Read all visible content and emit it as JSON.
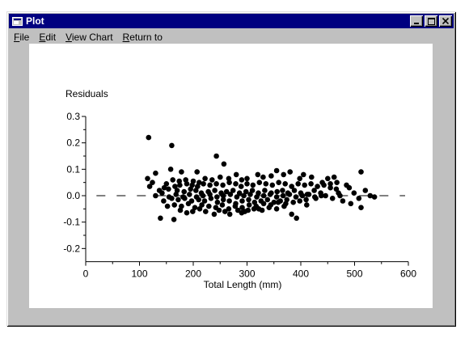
{
  "window": {
    "title": "Plot",
    "controls": [
      "minimize",
      "maximize",
      "close"
    ]
  },
  "menu": [
    {
      "label_ul": "F",
      "label_rest": "ile"
    },
    {
      "label_ul": "E",
      "label_rest": "dit"
    },
    {
      "label_ul": "V",
      "label_rest": "iew Chart"
    },
    {
      "label_ul": "R",
      "label_rest": "eturn to"
    }
  ],
  "chart_data": {
    "type": "scatter",
    "title": "",
    "ylabel": "Residuals",
    "xlabel": "Total Length (mm)",
    "xlim": [
      0,
      600
    ],
    "ylim": [
      -0.25,
      0.3
    ],
    "xticks": [
      0,
      100,
      200,
      300,
      400,
      500,
      600
    ],
    "yticks": [
      -0.2,
      -0.1,
      0.0,
      0.1,
      0.2,
      0.3
    ],
    "ytick_labels": [
      "-0.2",
      "-0.1",
      "0.0",
      "0.1",
      "0.2",
      "0.3"
    ],
    "reference_line": {
      "y": 0.0,
      "style": "dashed",
      "x_range": [
        20,
        600
      ]
    },
    "grid": false,
    "legend": "none",
    "marker_color": "#000000",
    "points": [
      [
        117,
        0.22
      ],
      [
        160,
        0.19
      ],
      [
        243,
        0.15
      ],
      [
        257,
        0.12
      ],
      [
        158,
        0.1
      ],
      [
        130,
        0.085
      ],
      [
        178,
        0.09
      ],
      [
        207,
        0.09
      ],
      [
        355,
        0.095
      ],
      [
        380,
        0.09
      ],
      [
        512,
        0.09
      ],
      [
        115,
        0.065
      ],
      [
        124,
        0.05
      ],
      [
        119,
        0.035
      ],
      [
        137,
        0.02
      ],
      [
        130,
        0.0
      ],
      [
        145,
        -0.02
      ],
      [
        152,
        -0.04
      ],
      [
        139,
        -0.085
      ],
      [
        164,
        -0.09
      ],
      [
        188,
        -0.065
      ],
      [
        223,
        -0.06
      ],
      [
        239,
        -0.07
      ],
      [
        268,
        -0.07
      ],
      [
        290,
        -0.065
      ],
      [
        302,
        -0.055
      ],
      [
        322,
        -0.05
      ],
      [
        355,
        -0.05
      ],
      [
        369,
        -0.04
      ],
      [
        383,
        -0.07
      ],
      [
        392,
        -0.085
      ],
      [
        411,
        -0.035
      ],
      [
        428,
        -0.01
      ],
      [
        446,
        0.0
      ],
      [
        455,
        0.03
      ],
      [
        470,
        0.01
      ],
      [
        490,
        0.03
      ],
      [
        499,
        0.01
      ],
      [
        508,
        -0.01
      ],
      [
        512,
        -0.045
      ],
      [
        520,
        0.02
      ],
      [
        529,
        0.0
      ],
      [
        537,
        -0.005
      ],
      [
        478,
        -0.02
      ],
      [
        493,
        -0.03
      ],
      [
        450,
        0.065
      ],
      [
        462,
        0.07
      ],
      [
        440,
        0.05
      ],
      [
        420,
        0.07
      ],
      [
        405,
        0.08
      ],
      [
        398,
        0.065
      ],
      [
        368,
        0.08
      ],
      [
        345,
        0.075
      ],
      [
        330,
        0.07
      ],
      [
        320,
        0.08
      ],
      [
        300,
        0.065
      ],
      [
        290,
        0.06
      ],
      [
        280,
        0.08
      ],
      [
        266,
        0.065
      ],
      [
        250,
        0.07
      ],
      [
        235,
        0.06
      ],
      [
        222,
        0.065
      ],
      [
        211,
        0.05
      ],
      [
        200,
        0.055
      ],
      [
        188,
        0.045
      ],
      [
        175,
        0.04
      ],
      [
        166,
        0.035
      ],
      [
        154,
        0.025
      ],
      [
        146,
        0.03
      ],
      [
        170,
        0.02
      ],
      [
        183,
        0.015
      ],
      [
        195,
        0.025
      ],
      [
        205,
        0.02
      ],
      [
        215,
        0.01
      ],
      [
        228,
        0.015
      ],
      [
        240,
        0.02
      ],
      [
        252,
        0.01
      ],
      [
        262,
        0.015
      ],
      [
        274,
        0.02
      ],
      [
        286,
        0.01
      ],
      [
        298,
        0.015
      ],
      [
        310,
        0.02
      ],
      [
        321,
        0.01
      ],
      [
        333,
        0.02
      ],
      [
        345,
        0.01
      ],
      [
        356,
        0.015
      ],
      [
        366,
        0.02
      ],
      [
        376,
        0.01
      ],
      [
        388,
        0.02
      ],
      [
        400,
        0.01
      ],
      [
        412,
        0.005
      ],
      [
        425,
        0.02
      ],
      [
        437,
        0.01
      ],
      [
        160,
        -0.01
      ],
      [
        172,
        -0.015
      ],
      [
        184,
        -0.01
      ],
      [
        197,
        -0.02
      ],
      [
        210,
        -0.015
      ],
      [
        221,
        -0.02
      ],
      [
        233,
        -0.01
      ],
      [
        245,
        -0.025
      ],
      [
        256,
        -0.015
      ],
      [
        267,
        -0.02
      ],
      [
        279,
        -0.03
      ],
      [
        291,
        -0.02
      ],
      [
        303,
        -0.015
      ],
      [
        314,
        -0.025
      ],
      [
        326,
        -0.02
      ],
      [
        338,
        -0.015
      ],
      [
        350,
        -0.025
      ],
      [
        362,
        -0.02
      ],
      [
        374,
        -0.015
      ],
      [
        386,
        -0.025
      ],
      [
        398,
        -0.02
      ],
      [
        410,
        -0.015
      ],
      [
        165,
        -0.035
      ],
      [
        178,
        -0.04
      ],
      [
        191,
        -0.03
      ],
      [
        203,
        -0.045
      ],
      [
        216,
        -0.035
      ],
      [
        229,
        -0.04
      ],
      [
        242,
        -0.045
      ],
      [
        254,
        -0.035
      ],
      [
        266,
        -0.05
      ],
      [
        278,
        -0.04
      ],
      [
        291,
        -0.045
      ],
      [
        304,
        -0.035
      ],
      [
        317,
        -0.04
      ],
      [
        331,
        -0.03
      ],
      [
        344,
        -0.035
      ],
      [
        358,
        -0.025
      ],
      [
        372,
        -0.03
      ],
      [
        162,
        0.06
      ],
      [
        174,
        0.055
      ],
      [
        186,
        0.06
      ],
      [
        198,
        0.04
      ],
      [
        208,
        0.035
      ],
      [
        219,
        0.045
      ],
      [
        231,
        0.04
      ],
      [
        243,
        0.045
      ],
      [
        255,
        0.04
      ],
      [
        267,
        0.05
      ],
      [
        279,
        0.045
      ],
      [
        289,
        0.035
      ],
      [
        300,
        0.045
      ],
      [
        311,
        0.04
      ],
      [
        323,
        0.05
      ],
      [
        335,
        0.045
      ],
      [
        347,
        0.04
      ],
      [
        359,
        0.05
      ],
      [
        371,
        0.045
      ],
      [
        383,
        0.035
      ],
      [
        395,
        0.045
      ],
      [
        407,
        0.04
      ],
      [
        419,
        0.045
      ],
      [
        431,
        0.035
      ],
      [
        443,
        0.04
      ],
      [
        455,
        0.045
      ],
      [
        467,
        0.05
      ],
      [
        176,
        -0.055
      ],
      [
        199,
        -0.06
      ],
      [
        212,
        -0.05
      ],
      [
        248,
        -0.055
      ],
      [
        259,
        -0.06
      ],
      [
        283,
        -0.055
      ],
      [
        296,
        -0.06
      ],
      [
        313,
        -0.05
      ],
      [
        328,
        -0.055
      ],
      [
        341,
        -0.045
      ],
      [
        150,
        0.045
      ],
      [
        142,
        0.01
      ],
      [
        155,
        -0.005
      ],
      [
        168,
        0.005
      ],
      [
        181,
        -0.005
      ],
      [
        193,
        0.005
      ],
      [
        206,
        -0.005
      ],
      [
        218,
        0.0
      ],
      [
        231,
        0.005
      ],
      [
        244,
        -0.005
      ],
      [
        256,
        0.0
      ],
      [
        269,
        0.005
      ],
      [
        281,
        -0.005
      ],
      [
        294,
        0.0
      ],
      [
        306,
        0.005
      ],
      [
        318,
        -0.005
      ],
      [
        331,
        0.0
      ],
      [
        343,
        0.005
      ],
      [
        355,
        -0.005
      ],
      [
        367,
        0.0
      ],
      [
        379,
        0.005
      ],
      [
        391,
        -0.005
      ],
      [
        403,
        0.0
      ],
      [
        415,
        0.005
      ],
      [
        426,
        -0.005
      ],
      [
        438,
        0.0
      ],
      [
        485,
        0.04
      ],
      [
        466,
        0.025
      ],
      [
        459,
        -0.01
      ],
      [
        473,
        0.0
      ]
    ]
  }
}
